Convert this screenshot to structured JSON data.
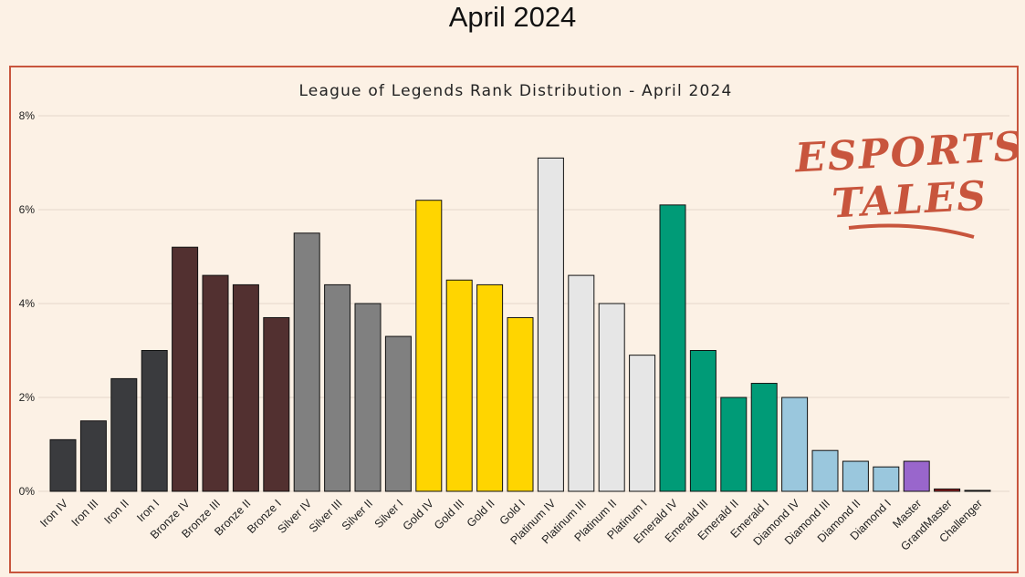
{
  "page": {
    "title": "April 2024"
  },
  "logo": {
    "line1": "ESPORTS",
    "line2": "TALES"
  },
  "chart_data": {
    "type": "bar",
    "title": "League of Legends Rank Distribution  - April 2024",
    "xlabel": "",
    "ylabel": "",
    "ylim": [
      0,
      8
    ],
    "yticks": [
      "0%",
      "2%",
      "4%",
      "6%",
      "8%"
    ],
    "grid": true,
    "categories": [
      "Iron IV",
      "Iron III",
      "Iron II",
      "Iron I",
      "Bronze IV",
      "Bronze III",
      "Bronze II",
      "Bronze I",
      "Silver IV",
      "Silver III",
      "Silver II",
      "Silver I",
      "Gold IV",
      "Gold III",
      "Gold II",
      "Gold I",
      "Platinum IV",
      "Platinum III",
      "Platinum II",
      "Platinum I",
      "Emerald IV",
      "Emerald III",
      "Emerald II",
      "Emerald I",
      "Diamond IV",
      "Diamond III",
      "Diamond II",
      "Diamond I",
      "Master",
      "GrandMaster",
      "Challenger"
    ],
    "values": [
      1.1,
      1.5,
      2.4,
      3.0,
      5.2,
      4.6,
      4.4,
      3.7,
      5.5,
      4.4,
      4.0,
      3.3,
      6.2,
      4.5,
      4.4,
      3.7,
      7.1,
      4.6,
      4.0,
      2.9,
      6.1,
      3.0,
      2.0,
      2.3,
      2.0,
      0.87,
      0.64,
      0.52,
      0.64,
      0.05,
      0.02
    ],
    "colors": [
      "#3a3b3e",
      "#3a3b3e",
      "#3a3b3e",
      "#3a3b3e",
      "#523030",
      "#523030",
      "#523030",
      "#523030",
      "#808080",
      "#808080",
      "#808080",
      "#808080",
      "#ffd500",
      "#ffd500",
      "#ffd500",
      "#ffd500",
      "#e6e6e6",
      "#e6e6e6",
      "#e6e6e6",
      "#e6e6e6",
      "#009b77",
      "#009b77",
      "#009b77",
      "#009b77",
      "#9ac7dd",
      "#9ac7dd",
      "#9ac7dd",
      "#9ac7dd",
      "#9966cc",
      "#8b1a1a",
      "#1a1a2e"
    ]
  }
}
